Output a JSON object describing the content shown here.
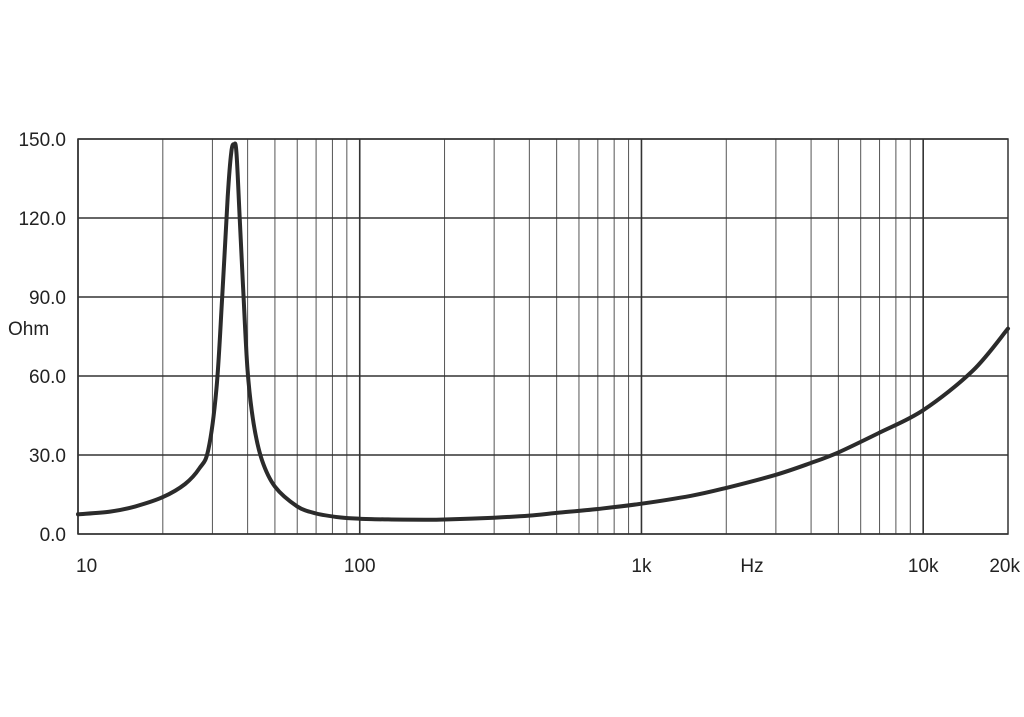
{
  "chart_data": {
    "type": "line",
    "xlabel": "Hz",
    "ylabel": "Ohm",
    "x_scale": "log",
    "xlim": [
      10,
      20000
    ],
    "ylim": [
      0,
      150
    ],
    "grid": true,
    "y_ticks": [
      {
        "value": 0,
        "label": "0.0"
      },
      {
        "value": 30,
        "label": "30.0"
      },
      {
        "value": 60,
        "label": "60.0"
      },
      {
        "value": 90,
        "label": "90.0"
      },
      {
        "value": 120,
        "label": "120.0"
      },
      {
        "value": 150,
        "label": "150.0"
      }
    ],
    "x_ticks": [
      {
        "value": 10,
        "label": "10"
      },
      {
        "value": 100,
        "label": "100"
      },
      {
        "value": 1000,
        "label": "1k"
      },
      {
        "value": 10000,
        "label": "10k"
      },
      {
        "value": 20000,
        "label": "20k"
      }
    ],
    "colors": {
      "line": "#2b2b2b",
      "grid": "#555555",
      "grid_major": "#333333"
    },
    "series": [
      {
        "x": [
          10,
          13,
          16,
          20,
          24,
          27,
          29,
          31,
          32.5,
          34,
          35,
          35.8,
          36.5,
          37.5,
          38.5,
          40,
          42,
          45,
          50,
          60,
          70,
          85,
          100,
          130,
          170,
          200,
          300,
          400,
          500,
          700,
          1000,
          1500,
          2000,
          3000,
          4000,
          5000,
          7000,
          10000,
          15000,
          20000
        ],
        "y": [
          7.5,
          8.5,
          10.5,
          14,
          19,
          25,
          32,
          55,
          90,
          128,
          145,
          148,
          145,
          120,
          95,
          62,
          42,
          28,
          18,
          10.5,
          7.8,
          6.3,
          5.8,
          5.5,
          5.4,
          5.5,
          6.2,
          7,
          8,
          9.5,
          11.5,
          14.5,
          17.5,
          22.5,
          27,
          31,
          38.5,
          47,
          62,
          78
        ]
      }
    ]
  }
}
